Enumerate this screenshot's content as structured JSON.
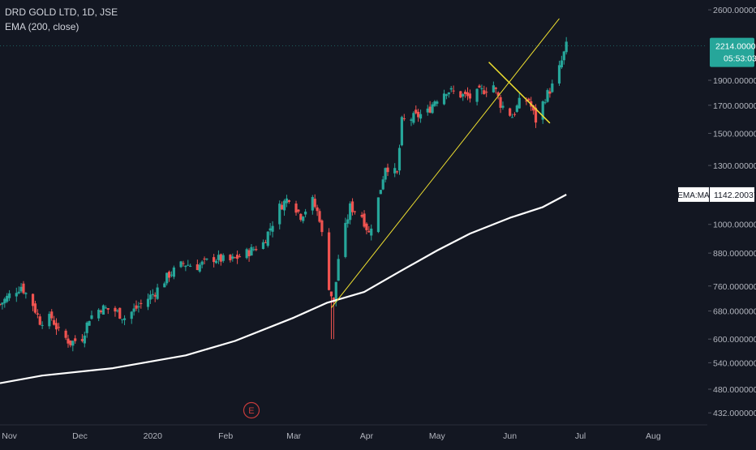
{
  "legend": {
    "symbol": "DRD GOLD LTD, 1D, JSE",
    "indicator": "EMA (200, close)"
  },
  "colors": {
    "background": "#131722",
    "up": "#26a69a",
    "down": "#ef5350",
    "ema": "#ffffff",
    "trendline": "#f0e130",
    "axis_text": "#b2b5be",
    "tag_bg": "#26a69a",
    "event": "#c43b3b"
  },
  "price_tag": {
    "price": "2214.00000",
    "countdown": "05:53:03"
  },
  "ema_tag": {
    "label": "EMA:MA",
    "value": "1142.20037"
  },
  "event_marker": "E",
  "chart_data": {
    "type": "candlestick",
    "title": "DRD GOLD LTD, 1D, JSE",
    "yscale": "log",
    "ylim": [
      420,
      2620
    ],
    "y_ticks": [
      "2600.00000",
      "1900.00000",
      "1700.00000",
      "1500.00000",
      "1300.00000",
      "1000.00000",
      "880.000000",
      "760.000000",
      "680.000000",
      "600.000000",
      "540.000000",
      "480.000000",
      "432.000000"
    ],
    "x_ticks": [
      "Nov",
      "Dec",
      "2020",
      "Feb",
      "Mar",
      "Apr",
      "May",
      "Jun",
      "Jul",
      "Aug"
    ],
    "x_tick_dates": [
      "2019-11-01",
      "2019-12-01",
      "2020-01-01",
      "2020-02-01",
      "2020-03-01",
      "2020-04-01",
      "2020-05-01",
      "2020-06-01",
      "2020-07-01",
      "2020-08-01"
    ],
    "xlim": [
      "2019-10-28",
      "2020-08-24"
    ],
    "grid": false,
    "close_path": [
      [
        "2019-10-28",
        700
      ],
      [
        "2019-11-01",
        730
      ],
      [
        "2019-11-06",
        760
      ],
      [
        "2019-11-11",
        700
      ],
      [
        "2019-11-14",
        650
      ],
      [
        "2019-11-19",
        660
      ],
      [
        "2019-11-22",
        620
      ],
      [
        "2019-11-27",
        590
      ],
      [
        "2019-12-02",
        605
      ],
      [
        "2019-12-05",
        660
      ],
      [
        "2019-12-10",
        690
      ],
      [
        "2019-12-16",
        680
      ],
      [
        "2019-12-20",
        660
      ],
      [
        "2019-12-27",
        700
      ],
      [
        "2020-01-02",
        740
      ],
      [
        "2020-01-08",
        800
      ],
      [
        "2020-01-14",
        840
      ],
      [
        "2020-01-20",
        830
      ],
      [
        "2020-01-27",
        860
      ],
      [
        "2020-02-03",
        850
      ],
      [
        "2020-02-10",
        880
      ],
      [
        "2020-02-17",
        920
      ],
      [
        "2020-02-24",
        1080
      ],
      [
        "2020-02-28",
        1130
      ],
      [
        "2020-03-04",
        1040
      ],
      [
        "2020-03-09",
        1110
      ],
      [
        "2020-03-12",
        1030
      ],
      [
        "2020-03-16",
        760
      ],
      [
        "2020-03-18",
        700
      ],
      [
        "2020-03-20",
        860
      ],
      [
        "2020-03-25",
        1080
      ],
      [
        "2020-03-30",
        1040
      ],
      [
        "2020-04-02",
        960
      ],
      [
        "2020-04-06",
        1120
      ],
      [
        "2020-04-09",
        1300
      ],
      [
        "2020-04-14",
        1250
      ],
      [
        "2020-04-16",
        1580
      ],
      [
        "2020-04-21",
        1610
      ],
      [
        "2020-04-27",
        1650
      ],
      [
        "2020-04-30",
        1740
      ],
      [
        "2020-05-05",
        1820
      ],
      [
        "2020-05-11",
        1780
      ],
      [
        "2020-05-15",
        1760
      ],
      [
        "2020-05-20",
        1810
      ],
      [
        "2020-05-25",
        1860
      ],
      [
        "2020-05-28",
        1710
      ],
      [
        "2020-06-02",
        1620
      ],
      [
        "2020-06-05",
        1720
      ],
      [
        "2020-06-09",
        1740
      ],
      [
        "2020-06-12",
        1590
      ],
      [
        "2020-06-16",
        1760
      ],
      [
        "2020-06-19",
        1850
      ],
      [
        "2020-06-22",
        2000
      ],
      [
        "2020-06-25",
        2214
      ]
    ],
    "ema": {
      "name": "EMA:MA",
      "points": [
        [
          "2019-10-28",
          493
        ],
        [
          "2019-11-15",
          510
        ],
        [
          "2019-12-15",
          527
        ],
        [
          "2020-01-15",
          558
        ],
        [
          "2020-02-05",
          595
        ],
        [
          "2020-03-01",
          660
        ],
        [
          "2020-03-15",
          705
        ],
        [
          "2020-03-31",
          740
        ],
        [
          "2020-04-15",
          810
        ],
        [
          "2020-05-01",
          890
        ],
        [
          "2020-05-15",
          960
        ],
        [
          "2020-06-01",
          1030
        ],
        [
          "2020-06-15",
          1080
        ],
        [
          "2020-06-25",
          1142
        ]
      ]
    },
    "trendlines": [
      {
        "from": [
          "2020-03-17",
          690
        ],
        "to": [
          "2020-06-22",
          2500
        ]
      },
      {
        "from": [
          "2020-05-23",
          2060
        ],
        "to": [
          "2020-06-18",
          1570
        ]
      }
    ],
    "events": [
      {
        "label": "E",
        "date": "2020-02-12"
      }
    ]
  }
}
